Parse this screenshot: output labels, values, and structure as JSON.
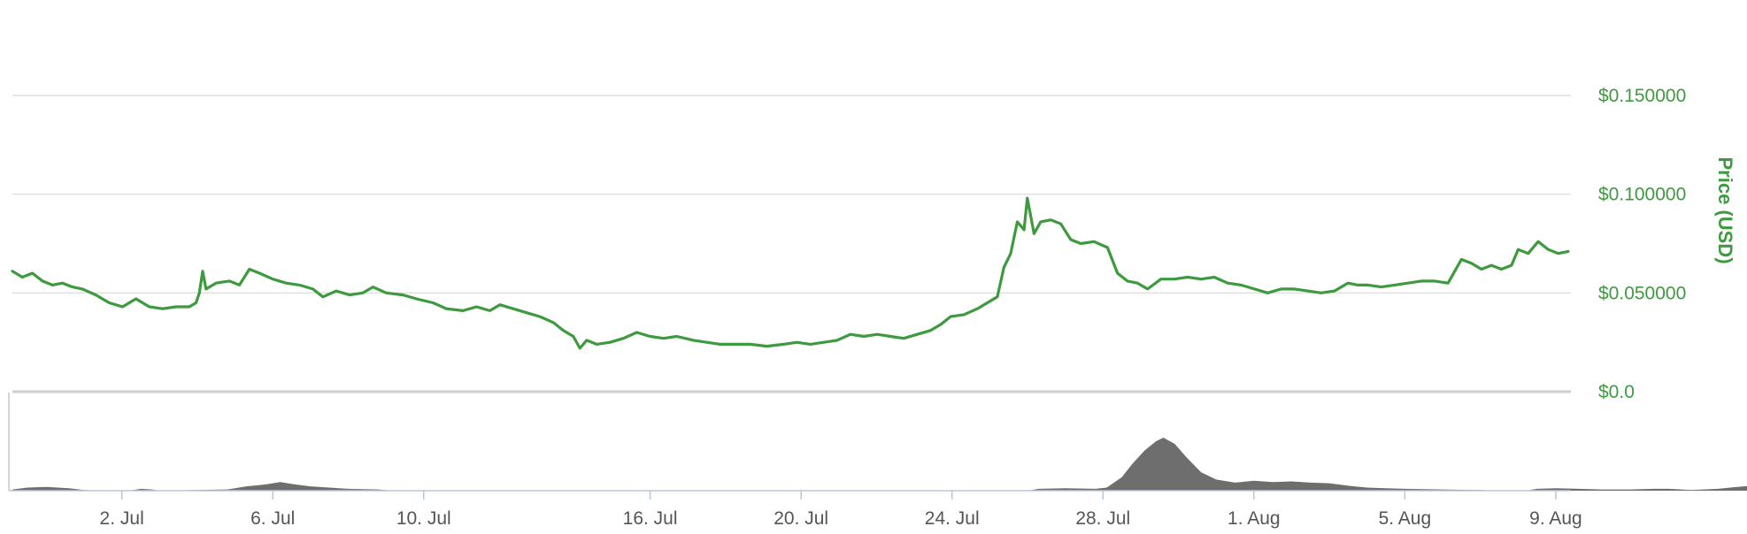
{
  "chart_data": {
    "type": "line",
    "ylabel": "Price (USD)",
    "y_ticks": [
      "$0.0",
      "$0.050000",
      "$0.100000",
      "$0.150000"
    ],
    "y_tick_values": [
      0,
      0.05,
      0.1,
      0.15
    ],
    "ylim": [
      0,
      0.15
    ],
    "x_ticks": [
      "2. Jul",
      "6. Jul",
      "10. Jul",
      "16. Jul",
      "20. Jul",
      "24. Jul",
      "28. Jul",
      "1. Aug",
      "5. Aug",
      "9. Aug"
    ],
    "x_tick_days": [
      2,
      6,
      10,
      16,
      20,
      24,
      28,
      32,
      36,
      40
    ],
    "xlim_days": [
      -0.9,
      40.4
    ],
    "grid": true,
    "colors": {
      "price_line": "#3e9a3e",
      "volume": "#6e6e6e",
      "grid": "#d8d8d8",
      "axis": "#c8c8c8"
    },
    "series": [
      {
        "values": [
          [
            -0.9,
            0.061
          ],
          [
            -0.6,
            0.058
          ],
          [
            -0.3,
            0.06
          ],
          [
            0,
            0.056
          ],
          [
            0.3,
            0.054
          ],
          [
            0.6,
            0.055
          ],
          [
            0.9,
            0.053
          ],
          [
            1.2,
            0.052
          ],
          [
            1.6,
            0.049
          ],
          [
            2.0,
            0.045
          ],
          [
            2.4,
            0.043
          ],
          [
            2.8,
            0.047
          ],
          [
            3.2,
            0.043
          ],
          [
            3.6,
            0.042
          ],
          [
            4.0,
            0.043
          ],
          [
            4.4,
            0.043
          ],
          [
            4.6,
            0.045
          ],
          [
            4.7,
            0.05
          ],
          [
            4.8,
            0.061
          ],
          [
            4.9,
            0.052
          ],
          [
            5.2,
            0.055
          ],
          [
            5.6,
            0.056
          ],
          [
            5.9,
            0.054
          ],
          [
            6.2,
            0.062
          ],
          [
            6.5,
            0.06
          ],
          [
            6.9,
            0.057
          ],
          [
            7.3,
            0.055
          ],
          [
            7.7,
            0.054
          ],
          [
            8.1,
            0.052
          ],
          [
            8.4,
            0.048
          ],
          [
            8.8,
            0.051
          ],
          [
            9.2,
            0.049
          ],
          [
            9.6,
            0.05
          ],
          [
            9.9,
            0.053
          ],
          [
            10.3,
            0.05
          ],
          [
            10.8,
            0.049
          ],
          [
            11.2,
            0.047
          ],
          [
            11.7,
            0.045
          ],
          [
            12.1,
            0.042
          ],
          [
            12.6,
            0.041
          ],
          [
            13.0,
            0.043
          ],
          [
            13.4,
            0.041
          ],
          [
            13.7,
            0.044
          ],
          [
            14.1,
            0.042
          ],
          [
            14.5,
            0.04
          ],
          [
            14.9,
            0.038
          ],
          [
            15.3,
            0.035
          ],
          [
            15.6,
            0.031
          ],
          [
            15.9,
            0.028
          ],
          [
            16.1,
            0.022
          ],
          [
            16.3,
            0.026
          ],
          [
            16.6,
            0.024
          ],
          [
            17.0,
            0.025
          ],
          [
            17.4,
            0.027
          ],
          [
            17.8,
            0.03
          ],
          [
            18.2,
            0.028
          ],
          [
            18.6,
            0.027
          ],
          [
            19.0,
            0.028
          ],
          [
            19.5,
            0.026
          ],
          [
            19.9,
            0.025
          ],
          [
            20.3,
            0.024
          ],
          [
            20.8,
            0.024
          ],
          [
            21.2,
            0.024
          ],
          [
            21.7,
            0.023
          ],
          [
            22.2,
            0.024
          ],
          [
            22.6,
            0.025
          ],
          [
            23.0,
            0.024
          ],
          [
            23.4,
            0.025
          ],
          [
            23.8,
            0.026
          ],
          [
            24.2,
            0.029
          ],
          [
            24.6,
            0.028
          ],
          [
            25.0,
            0.029
          ],
          [
            25.4,
            0.028
          ],
          [
            25.8,
            0.027
          ],
          [
            26.2,
            0.029
          ],
          [
            26.6,
            0.031
          ],
          [
            26.9,
            0.034
          ],
          [
            27.2,
            0.038
          ],
          [
            27.6,
            0.039
          ],
          [
            28.0,
            0.042
          ],
          [
            28.3,
            0.045
          ],
          [
            28.6,
            0.048
          ],
          [
            28.8,
            0.063
          ],
          [
            29.0,
            0.07
          ],
          [
            29.2,
            0.086
          ],
          [
            29.4,
            0.082
          ],
          [
            29.5,
            0.098
          ],
          [
            29.7,
            0.08
          ],
          [
            29.9,
            0.086
          ],
          [
            30.2,
            0.087
          ],
          [
            30.5,
            0.085
          ],
          [
            30.8,
            0.077
          ],
          [
            31.1,
            0.075
          ],
          [
            31.5,
            0.076
          ],
          [
            31.9,
            0.073
          ],
          [
            32.2,
            0.06
          ],
          [
            32.5,
            0.056
          ],
          [
            32.8,
            0.055
          ],
          [
            33.1,
            0.052
          ],
          [
            33.5,
            0.057
          ],
          [
            33.9,
            0.057
          ],
          [
            34.3,
            0.058
          ],
          [
            34.7,
            0.057
          ],
          [
            35.1,
            0.058
          ],
          [
            35.5,
            0.055
          ],
          [
            35.9,
            0.054
          ],
          [
            36.3,
            0.052
          ],
          [
            36.7,
            0.05
          ],
          [
            37.1,
            0.052
          ],
          [
            37.5,
            0.052
          ],
          [
            37.9,
            0.051
          ],
          [
            38.3,
            0.05
          ],
          [
            38.7,
            0.051
          ],
          [
            39.1,
            0.055
          ],
          [
            39.4,
            0.054
          ],
          [
            39.7,
            0.054
          ],
          [
            40.1,
            0.053
          ],
          [
            40.5,
            0.054
          ],
          [
            40.9,
            0.055
          ],
          [
            41.3,
            0.056
          ],
          [
            41.7,
            0.056
          ],
          [
            42.1,
            0.055
          ],
          [
            42.5,
            0.067
          ],
          [
            42.8,
            0.065
          ],
          [
            43.1,
            0.062
          ],
          [
            43.4,
            0.064
          ],
          [
            43.7,
            0.062
          ],
          [
            44.0,
            0.064
          ],
          [
            44.2,
            0.072
          ],
          [
            44.5,
            0.07
          ],
          [
            44.8,
            0.076
          ],
          [
            45.1,
            0.072
          ],
          [
            45.4,
            0.07
          ],
          [
            45.7,
            0.071
          ]
        ]
      }
    ],
    "volume": {
      "values": [
        [
          -0.9,
          0.2
        ],
        [
          -0.5,
          0.5
        ],
        [
          0,
          0.6
        ],
        [
          0.6,
          0.4
        ],
        [
          1.0,
          0.1
        ],
        [
          1.5,
          0
        ],
        [
          2.2,
          0
        ],
        [
          2.5,
          0.3
        ],
        [
          2.8,
          0.2
        ],
        [
          3.0,
          0
        ],
        [
          4.8,
          0.2
        ],
        [
          5.3,
          0.7
        ],
        [
          5.8,
          1.0
        ],
        [
          6.2,
          1.4
        ],
        [
          6.6,
          1.0
        ],
        [
          7.0,
          0.7
        ],
        [
          7.5,
          0.5
        ],
        [
          8.0,
          0.3
        ],
        [
          8.8,
          0.2
        ],
        [
          9.2,
          0
        ],
        [
          26.0,
          0
        ],
        [
          26.3,
          0.3
        ],
        [
          27.0,
          0.4
        ],
        [
          27.8,
          0.3
        ],
        [
          28.1,
          0.5
        ],
        [
          28.5,
          2.2
        ],
        [
          28.8,
          4.5
        ],
        [
          29.1,
          6.5
        ],
        [
          29.4,
          8.0
        ],
        [
          29.6,
          8.6
        ],
        [
          29.9,
          7.6
        ],
        [
          30.2,
          5.5
        ],
        [
          30.6,
          3.0
        ],
        [
          31.0,
          1.8
        ],
        [
          31.5,
          1.3
        ],
        [
          32.0,
          1.6
        ],
        [
          32.5,
          1.4
        ],
        [
          33.0,
          1.5
        ],
        [
          33.5,
          1.3
        ],
        [
          34.0,
          1.2
        ],
        [
          34.5,
          0.8
        ],
        [
          35.0,
          0.5
        ],
        [
          35.5,
          0.4
        ],
        [
          36.0,
          0.3
        ],
        [
          37.0,
          0.2
        ],
        [
          38.0,
          0.1
        ],
        [
          38.5,
          0
        ],
        [
          39.2,
          0
        ],
        [
          39.5,
          0.3
        ],
        [
          40.0,
          0.4
        ],
        [
          40.6,
          0.3
        ],
        [
          41.2,
          0.2
        ],
        [
          42.0,
          0.2
        ],
        [
          42.6,
          0.3
        ],
        [
          43.0,
          0.3
        ],
        [
          43.6,
          0.1
        ],
        [
          44.3,
          0.3
        ],
        [
          44.8,
          0.6
        ],
        [
          45.2,
          0.8
        ],
        [
          45.6,
          1.0
        ],
        [
          46.0,
          0.8
        ],
        [
          46.4,
          0.6
        ],
        [
          47.0,
          0.5
        ],
        [
          47.6,
          0.8
        ],
        [
          48.0,
          1.0
        ],
        [
          48.4,
          0.9
        ],
        [
          48.8,
          0.5
        ]
      ]
    }
  }
}
